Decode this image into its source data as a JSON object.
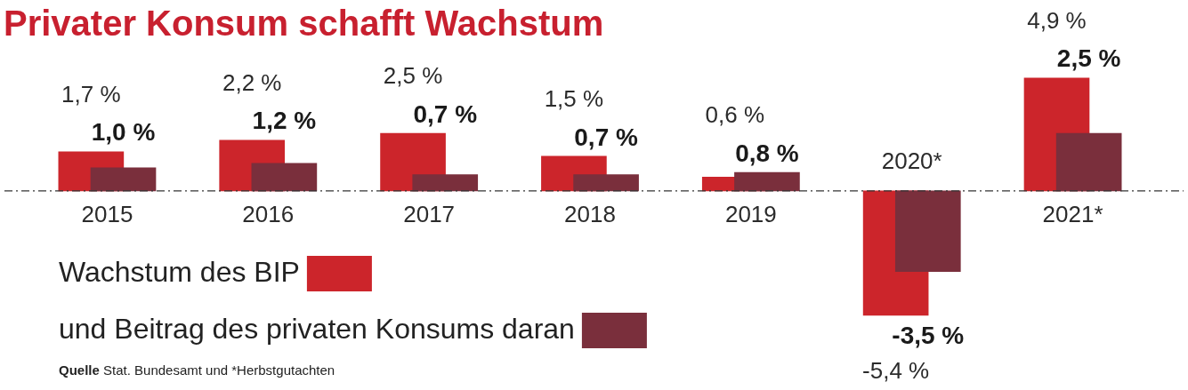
{
  "chart_data": {
    "type": "bar",
    "title": "Privater Konsum schafft Wachstum",
    "categories": [
      "2015",
      "2016",
      "2017",
      "2018",
      "2019",
      "2020*",
      "2021*"
    ],
    "series": [
      {
        "name": "Wachstum des BIP",
        "color": "#cc252b",
        "values": [
          1.7,
          2.2,
          2.5,
          1.5,
          0.6,
          -5.4,
          4.9
        ],
        "value_labels": [
          "1,7 %",
          "2,2 %",
          "2,5 %",
          "1,5 %",
          "0,6 %",
          "-5,4 %",
          "4,9 %"
        ]
      },
      {
        "name": "und Beitrag des privaten Konsums daran",
        "color": "#7a2f3c",
        "values": [
          1.0,
          1.2,
          0.7,
          0.7,
          0.8,
          -3.5,
          2.5
        ],
        "value_labels": [
          "1,0 %",
          "1,2 %",
          "0,7 %",
          "0,7 %",
          "0,8 %",
          "-3,5 %",
          "2,5 %"
        ]
      }
    ],
    "ref_lines": [
      {
        "axis": "y",
        "value": 0,
        "color": "#333333",
        "line_style": "dashed"
      }
    ],
    "legend": "bottom left",
    "annotations": [
      "Quelle Stat. Bundesamt und *Herbstgutachten"
    ]
  }
}
